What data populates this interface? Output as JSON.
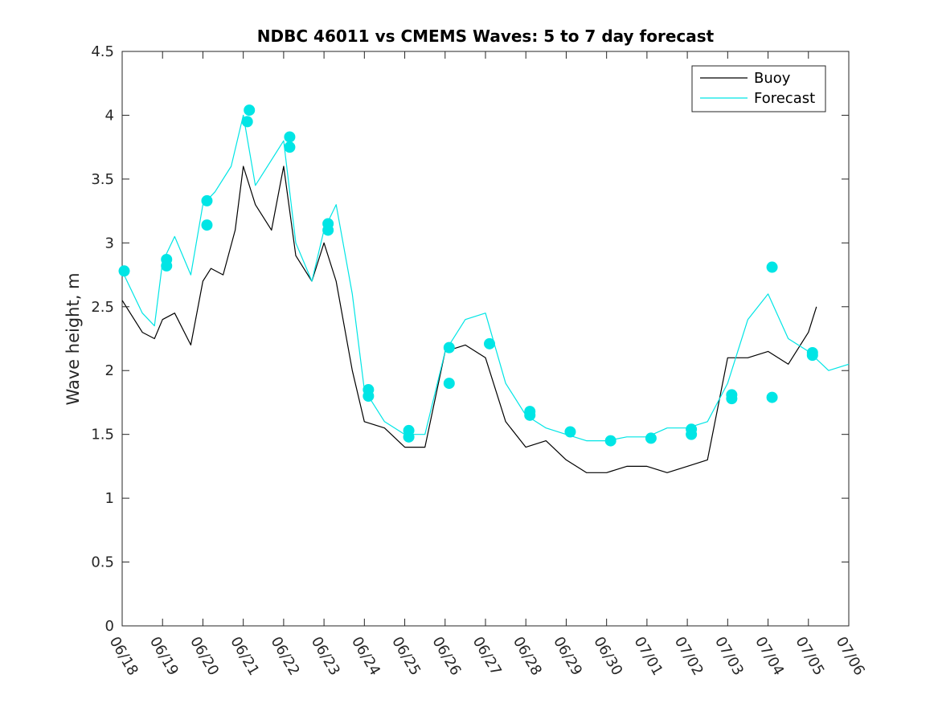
{
  "chart_data": {
    "type": "line",
    "title": "NDBC 46011 vs CMEMS Waves: 5 to 7 day forecast",
    "xlabel": "",
    "ylabel": "Wave height, m",
    "xlim": [
      0,
      18
    ],
    "ylim": [
      0,
      4.5
    ],
    "x_tick_labels": [
      "06/18",
      "06/19",
      "06/20",
      "06/21",
      "06/22",
      "06/23",
      "06/24",
      "06/25",
      "06/26",
      "06/27",
      "06/28",
      "06/29",
      "06/30",
      "07/01",
      "07/02",
      "07/03",
      "07/04",
      "07/05",
      "07/06"
    ],
    "y_ticks": [
      0,
      0.5,
      1,
      1.5,
      2,
      2.5,
      3,
      3.5,
      4,
      4.5
    ],
    "y_tick_labels": [
      "0",
      "0.5",
      "1",
      "1.5",
      "2",
      "2.5",
      "3",
      "3.5",
      "4",
      "4.5"
    ],
    "grid": false,
    "legend": {
      "position": "top-right",
      "entries": [
        "Buoy",
        "Forecast"
      ]
    },
    "colors": {
      "buoy": "#000000",
      "forecast": "#00e5e5",
      "axes": "#262626"
    },
    "series": [
      {
        "name": "Buoy",
        "x": [
          0,
          0.5,
          0.8,
          1,
          1.3,
          1.7,
          2,
          2.2,
          2.5,
          2.8,
          3,
          3.3,
          3.7,
          4,
          4.3,
          4.7,
          5,
          5.3,
          5.7,
          6,
          6.5,
          7,
          7.5,
          8,
          8.5,
          9,
          9.5,
          10,
          10.5,
          11,
          11.5,
          12,
          12.5,
          13,
          13.5,
          14,
          14.5,
          15,
          15.5,
          16,
          16.5,
          17,
          17.2
        ],
        "y": [
          2.55,
          2.3,
          2.25,
          2.4,
          2.45,
          2.2,
          2.7,
          2.8,
          2.75,
          3.1,
          3.6,
          3.3,
          3.1,
          3.6,
          2.9,
          2.7,
          3.0,
          2.7,
          2.0,
          1.6,
          1.55,
          1.4,
          1.4,
          2.15,
          2.2,
          2.1,
          1.6,
          1.4,
          1.45,
          1.3,
          1.2,
          1.2,
          1.25,
          1.25,
          1.2,
          1.25,
          1.3,
          2.1,
          2.1,
          2.15,
          2.05,
          2.3,
          2.5
        ]
      },
      {
        "name": "Forecast",
        "x": [
          0,
          0.5,
          0.8,
          1,
          1.3,
          1.7,
          2,
          2.3,
          2.7,
          3,
          3.3,
          3.7,
          4,
          4.3,
          4.7,
          5,
          5.3,
          5.7,
          6,
          6.5,
          7,
          7.5,
          8,
          8.5,
          9,
          9.5,
          10,
          10.5,
          11,
          11.5,
          12,
          12.5,
          13,
          13.5,
          14,
          14.5,
          15,
          15.5,
          16,
          16.5,
          17,
          17.5,
          18
        ],
        "y": [
          2.78,
          2.45,
          2.35,
          2.85,
          3.05,
          2.75,
          3.3,
          3.4,
          3.6,
          4.0,
          3.45,
          3.65,
          3.8,
          3.0,
          2.7,
          3.1,
          3.3,
          2.6,
          1.85,
          1.6,
          1.5,
          1.5,
          2.15,
          2.4,
          2.45,
          1.9,
          1.65,
          1.55,
          1.5,
          1.45,
          1.45,
          1.48,
          1.48,
          1.55,
          1.55,
          1.6,
          1.9,
          2.4,
          2.6,
          2.25,
          2.15,
          2.0,
          2.05
        ]
      }
    ],
    "markers": [
      {
        "x": 0.05,
        "y": 2.78
      },
      {
        "x": 1.1,
        "y": 2.82
      },
      {
        "x": 1.1,
        "y": 2.87
      },
      {
        "x": 2.1,
        "y": 3.14
      },
      {
        "x": 2.1,
        "y": 3.33
      },
      {
        "x": 3.1,
        "y": 3.95
      },
      {
        "x": 3.15,
        "y": 4.04
      },
      {
        "x": 4.15,
        "y": 3.75
      },
      {
        "x": 4.15,
        "y": 3.83
      },
      {
        "x": 5.1,
        "y": 3.1
      },
      {
        "x": 5.1,
        "y": 3.15
      },
      {
        "x": 6.1,
        "y": 1.8
      },
      {
        "x": 6.1,
        "y": 1.85
      },
      {
        "x": 7.1,
        "y": 1.48
      },
      {
        "x": 7.1,
        "y": 1.53
      },
      {
        "x": 8.1,
        "y": 1.9
      },
      {
        "x": 8.1,
        "y": 2.18
      },
      {
        "x": 9.1,
        "y": 2.21
      },
      {
        "x": 10.1,
        "y": 1.65
      },
      {
        "x": 10.1,
        "y": 1.68
      },
      {
        "x": 11.1,
        "y": 1.52
      },
      {
        "x": 12.1,
        "y": 1.45
      },
      {
        "x": 13.1,
        "y": 1.47
      },
      {
        "x": 14.1,
        "y": 1.5
      },
      {
        "x": 14.1,
        "y": 1.54
      },
      {
        "x": 15.1,
        "y": 1.78
      },
      {
        "x": 15.1,
        "y": 1.81
      },
      {
        "x": 16.1,
        "y": 1.79
      },
      {
        "x": 16.1,
        "y": 2.81
      },
      {
        "x": 17.1,
        "y": 2.12
      },
      {
        "x": 17.1,
        "y": 2.14
      }
    ]
  }
}
